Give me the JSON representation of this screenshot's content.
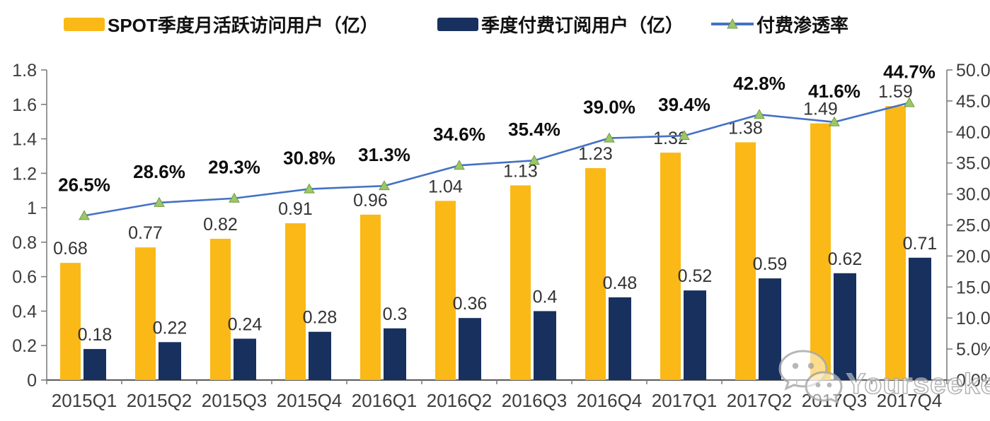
{
  "chart_data": {
    "type": "bar",
    "subtype": "dual-axis-bar-line-combo",
    "categories": [
      "2015Q1",
      "2015Q2",
      "2015Q3",
      "2015Q4",
      "2016Q1",
      "2016Q2",
      "2016Q3",
      "2016Q4",
      "2017Q1",
      "2017Q2",
      "2017Q3",
      "2017Q4"
    ],
    "series": [
      {
        "name": "SPOT季度月活跃访问用户（亿）",
        "type": "bar",
        "axis": "left",
        "color": "#FBB917",
        "values": [
          0.68,
          0.77,
          0.82,
          0.91,
          0.96,
          1.04,
          1.13,
          1.23,
          1.32,
          1.38,
          1.49,
          1.59
        ],
        "labels": [
          "0.68",
          "0.77",
          "0.82",
          "0.91",
          "0.96",
          "1.04",
          "1.13",
          "1.23",
          "1.32",
          "1.38",
          "1.49",
          "1.59"
        ]
      },
      {
        "name": "季度付费订阅用户（亿）",
        "type": "bar",
        "axis": "left",
        "color": "#17305E",
        "values": [
          0.18,
          0.22,
          0.24,
          0.28,
          0.3,
          0.36,
          0.4,
          0.48,
          0.52,
          0.59,
          0.62,
          0.71
        ],
        "labels": [
          "0.18",
          "0.22",
          "0.24",
          "0.28",
          "0.3",
          "0.36",
          "0.4",
          "0.48",
          "0.52",
          "0.59",
          "0.62",
          "0.71"
        ]
      },
      {
        "name": "付费渗透率",
        "type": "line",
        "axis": "right",
        "color": "#4472C4",
        "marker": "triangle-up",
        "marker_fill": "#9DC668",
        "marker_edge": "#6F9C43",
        "values": [
          26.5,
          28.6,
          29.3,
          30.8,
          31.3,
          34.6,
          35.4,
          39.0,
          39.4,
          42.8,
          41.6,
          44.7
        ],
        "labels": [
          "26.5%",
          "28.6%",
          "29.3%",
          "30.8%",
          "31.3%",
          "34.6%",
          "35.4%",
          "39.0%",
          "39.4%",
          "42.8%",
          "41.6%",
          "44.7%"
        ]
      }
    ],
    "left_axis": {
      "min": 0,
      "max": 1.8,
      "step": 0.2,
      "ticks": [
        "0",
        "0.2",
        "0.4",
        "0.6",
        "0.8",
        "1",
        "1.2",
        "1.4",
        "1.6",
        "1.8"
      ]
    },
    "right_axis": {
      "min": 0,
      "max": 50,
      "step": 5,
      "ticks": [
        "0.0%",
        "5.0%",
        "10.0%",
        "15.0%",
        "20.0%",
        "25.0%",
        "30.0%",
        "35.0%",
        "40.0%",
        "45.0%",
        "50.0%"
      ]
    },
    "grid": false,
    "legend_position": "top",
    "axis_color": "#7f7f7f",
    "baseline_color": "#595959"
  },
  "watermark": {
    "text": "Yourseeker",
    "icon": "wechat-chat-bubbles-icon",
    "color": "#a8a8a8"
  }
}
